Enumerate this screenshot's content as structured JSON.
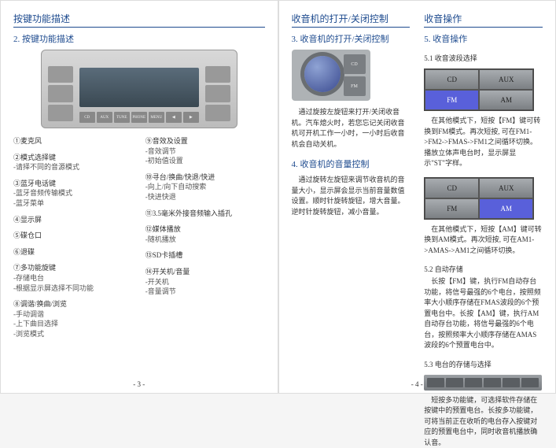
{
  "colors": {
    "heading": "#1e4b8f",
    "text": "#333333",
    "active_band": "#5960da"
  },
  "fonts": {
    "body_size_pt": 7,
    "heading_size_pt": 9
  },
  "page_left": {
    "title": "按键功能描述",
    "subtitle": "2. 按键功能描述",
    "radio_buttons_row": [
      "CD",
      "AUX",
      "TUNE",
      "PHONE",
      "MENU",
      "◀",
      "▶"
    ],
    "legend_left": [
      {
        "num": "①",
        "label": "麦克风",
        "subs": []
      },
      {
        "num": "②",
        "label": "模式选择键",
        "subs": [
          "-请择不同的音源模式"
        ]
      },
      {
        "num": "③",
        "label": "蓝牙电话键",
        "subs": [
          "-蓝牙音频传输模式",
          "-蓝牙菜单"
        ]
      },
      {
        "num": "④",
        "label": "显示屏",
        "subs": []
      },
      {
        "num": "⑤",
        "label": "碟仓口",
        "subs": []
      },
      {
        "num": "⑥",
        "label": "退碟",
        "subs": []
      },
      {
        "num": "⑦",
        "label": "多功能旋键",
        "subs": [
          "-存储电台",
          "-根据显示屏选择不同功能"
        ]
      },
      {
        "num": "⑧",
        "label": "调谐/换曲/浏览",
        "subs": [
          "-手动调谐",
          "-上下曲目选择",
          "-浏览模式"
        ]
      }
    ],
    "legend_right": [
      {
        "num": "⑨",
        "label": "音效及设置",
        "subs": [
          "-音效调节",
          "-初始值设置"
        ]
      },
      {
        "num": "⑩",
        "label": "寻台/换曲/快退/快进",
        "subs": [
          "-向上/向下自动搜索",
          "-快进快退"
        ]
      },
      {
        "num": "⑪",
        "label": "3.5毫米外接音频输入插孔",
        "subs": []
      },
      {
        "num": "⑫",
        "label": "媒体播放",
        "subs": [
          "-随机播放"
        ]
      },
      {
        "num": "⑬",
        "label": "SD卡插槽",
        "subs": []
      },
      {
        "num": "⑭",
        "label": "开关机/音量",
        "subs": [
          "-开关机",
          "-音量调节"
        ]
      }
    ],
    "page_num": "- 3 -"
  },
  "page_right": {
    "col1": {
      "title": "收音机的打开/关闭控制",
      "sec3": {
        "subtitle": "3. 收音机的打开/关闭控制",
        "knob_btns": [
          "CD",
          "FM"
        ],
        "body": "通过旋按左旋钮来打开/关闭收音机。汽车熄火时，若您忘记关闭收音机可开机工作一小时，一小时后收音机会自动关机。"
      },
      "sec4": {
        "subtitle": "4. 收音机的音量控制",
        "body": "通过旋转左旋钮来调节收音机的音量大小，显示屏会显示当前音量数值设置。顺时针旋转旋钮，增大音量。逆时针旋转旋钮，减小音量。"
      }
    },
    "col2": {
      "title": "收音操作",
      "sec5": {
        "subtitle": "5. 收音操作",
        "s51_title": "5.1 收音波段选择",
        "grid1": {
          "cells": [
            "CD",
            "AUX",
            "FM",
            "AM"
          ],
          "active_index": 2
        },
        "s51_body1": "在其他模式下，短按【FM】键可转换到FM模式。再次短按, 可在FM1->FM2->FMAS->FM1之间循环切换。播放立体声电台时，显示屏显示\"ST\"字样。",
        "grid2": {
          "cells": [
            "CD",
            "AUX",
            "FM",
            "AM"
          ],
          "active_index": 3
        },
        "s51_body2": "在其他模式下，短按【AM】键可转换到AM模式。再次短按, 可在AM1->AMAS->AM1之间循环切换。",
        "s52_title": "5.2 自动存储",
        "s52_body": "长按【FM】键，执行FM自动存台功能，将信号最强的6个电台，按照频率大小顺序存储在FMAS波段的6个预置电台中。长按【AM】键，执行AM自动存台功能，将信号最强的6个电台，按照频率大小顺序存储在AMAS波段的6个预置电台中。",
        "s53_title": "5.3 电台的存储与选择",
        "s53_body": "短按多功能键，可选择软件存储在按键中的预置电台。长按多功能键，可将当前正在收听的电台存入按键对应的预置电台中，同时收音机播放确认音。"
      }
    },
    "page_num": "- 4 -"
  }
}
